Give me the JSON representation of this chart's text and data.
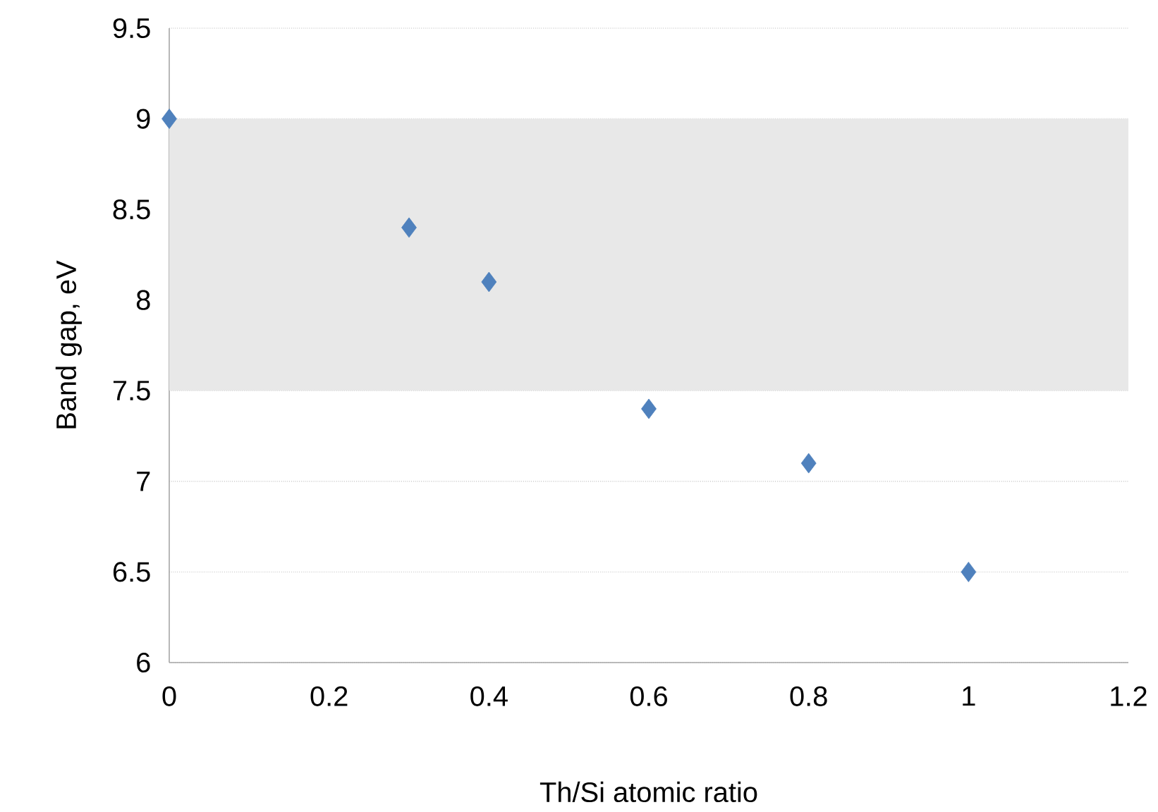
{
  "chart_data": {
    "type": "scatter",
    "xlabel": "Th/Si  atomic ratio",
    "ylabel": "Band gap,  eV",
    "x": [
      0,
      0.3,
      0.4,
      0.6,
      0.8,
      1
    ],
    "values": [
      9,
      8.4,
      8.1,
      7.4,
      7.1,
      6.5
    ],
    "color": "#4f81bd",
    "marker": "diamond",
    "xlim": [
      0,
      1.2
    ],
    "xticks": [
      0,
      0.2,
      0.4,
      0.6,
      0.8,
      1,
      1.2
    ],
    "ylim": [
      6,
      9.5
    ],
    "yticks": [
      6,
      6.5,
      7,
      7.5,
      8,
      8.5,
      9,
      9.5
    ],
    "bands": [
      {
        "axis": "y",
        "from": 7.5,
        "to": 9,
        "color": "#e8e8e8"
      }
    ],
    "grid": "y"
  }
}
